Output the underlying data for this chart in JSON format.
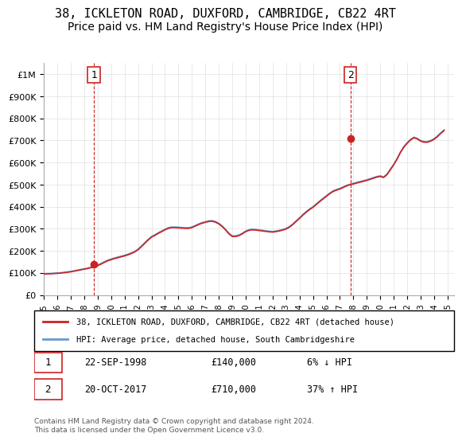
{
  "title": "38, ICKLETON ROAD, DUXFORD, CAMBRIDGE, CB22 4RT",
  "subtitle": "Price paid vs. HM Land Registry's House Price Index (HPI)",
  "title_fontsize": 11,
  "subtitle_fontsize": 10,
  "ylim": [
    0,
    1050000
  ],
  "yticks": [
    0,
    100000,
    200000,
    300000,
    400000,
    500000,
    600000,
    700000,
    800000,
    900000,
    1000000
  ],
  "ytick_labels": [
    "£0",
    "£100K",
    "£200K",
    "£300K",
    "£400K",
    "£500K",
    "£600K",
    "£700K",
    "£800K",
    "£900K",
    "£1M"
  ],
  "sale1_year": 1998.72,
  "sale1_price": 140000,
  "sale1_label": "1",
  "sale1_date": "22-SEP-1998",
  "sale1_amount": "£140,000",
  "sale1_hpi": "6% ↓ HPI",
  "sale2_year": 2017.79,
  "sale2_price": 710000,
  "sale2_label": "2",
  "sale2_date": "20-OCT-2017",
  "sale2_amount": "£710,000",
  "sale2_hpi": "37% ↑ HPI",
  "hpi_color": "#6699cc",
  "price_color": "#cc2222",
  "vline_color": "#cc2222",
  "grid_color": "#e0e0e0",
  "background_color": "#ffffff",
  "legend_label_red": "38, ICKLETON ROAD, DUXFORD, CAMBRIDGE, CB22 4RT (detached house)",
  "legend_label_blue": "HPI: Average price, detached house, South Cambridgeshire",
  "footer": "Contains HM Land Registry data © Crown copyright and database right 2024.\nThis data is licensed under the Open Government Licence v3.0.",
  "hpi_data": {
    "years": [
      1995.0,
      1995.25,
      1995.5,
      1995.75,
      1996.0,
      1996.25,
      1996.5,
      1996.75,
      1997.0,
      1997.25,
      1997.5,
      1997.75,
      1998.0,
      1998.25,
      1998.5,
      1998.75,
      1999.0,
      1999.25,
      1999.5,
      1999.75,
      2000.0,
      2000.25,
      2000.5,
      2000.75,
      2001.0,
      2001.25,
      2001.5,
      2001.75,
      2002.0,
      2002.25,
      2002.5,
      2002.75,
      2003.0,
      2003.25,
      2003.5,
      2003.75,
      2004.0,
      2004.25,
      2004.5,
      2004.75,
      2005.0,
      2005.25,
      2005.5,
      2005.75,
      2006.0,
      2006.25,
      2006.5,
      2006.75,
      2007.0,
      2007.25,
      2007.5,
      2007.75,
      2008.0,
      2008.25,
      2008.5,
      2008.75,
      2009.0,
      2009.25,
      2009.5,
      2009.75,
      2010.0,
      2010.25,
      2010.5,
      2010.75,
      2011.0,
      2011.25,
      2011.5,
      2011.75,
      2012.0,
      2012.25,
      2012.5,
      2012.75,
      2013.0,
      2013.25,
      2013.5,
      2013.75,
      2014.0,
      2014.25,
      2014.5,
      2014.75,
      2015.0,
      2015.25,
      2015.5,
      2015.75,
      2016.0,
      2016.25,
      2016.5,
      2016.75,
      2017.0,
      2017.25,
      2017.5,
      2017.75,
      2018.0,
      2018.25,
      2018.5,
      2018.75,
      2019.0,
      2019.25,
      2019.5,
      2019.75,
      2020.0,
      2020.25,
      2020.5,
      2020.75,
      2021.0,
      2021.25,
      2021.5,
      2021.75,
      2022.0,
      2022.25,
      2022.5,
      2022.75,
      2023.0,
      2023.25,
      2023.5,
      2023.75,
      2024.0,
      2024.25,
      2024.5,
      2024.75
    ],
    "values": [
      97000,
      97500,
      98000,
      99000,
      100000,
      101000,
      103000,
      105000,
      107000,
      110000,
      113000,
      116000,
      119000,
      122000,
      126000,
      130000,
      136000,
      143000,
      151000,
      158000,
      163000,
      168000,
      172000,
      176000,
      180000,
      185000,
      191000,
      198000,
      208000,
      222000,
      237000,
      252000,
      265000,
      273000,
      282000,
      290000,
      298000,
      305000,
      308000,
      308000,
      307000,
      306000,
      305000,
      305000,
      308000,
      315000,
      322000,
      328000,
      332000,
      336000,
      337000,
      333000,
      325000,
      313000,
      298000,
      280000,
      268000,
      268000,
      272000,
      280000,
      290000,
      296000,
      298000,
      297000,
      295000,
      293000,
      291000,
      289000,
      288000,
      290000,
      293000,
      297000,
      302000,
      310000,
      322000,
      336000,
      350000,
      365000,
      378000,
      390000,
      400000,
      413000,
      426000,
      438000,
      450000,
      462000,
      472000,
      478000,
      483000,
      490000,
      497000,
      502000,
      506000,
      510000,
      514000,
      518000,
      522000,
      527000,
      532000,
      537000,
      540000,
      535000,
      548000,
      570000,
      592000,
      618000,
      648000,
      672000,
      690000,
      705000,
      715000,
      710000,
      700000,
      695000,
      695000,
      700000,
      708000,
      720000,
      735000,
      748000
    ]
  },
  "price_data": {
    "years": [
      1995.0,
      1995.25,
      1995.5,
      1995.75,
      1996.0,
      1996.25,
      1996.5,
      1996.75,
      1997.0,
      1997.25,
      1997.5,
      1997.75,
      1998.0,
      1998.25,
      1998.5,
      1998.75,
      1999.0,
      1999.25,
      1999.5,
      1999.75,
      2000.0,
      2000.25,
      2000.5,
      2000.75,
      2001.0,
      2001.25,
      2001.5,
      2001.75,
      2002.0,
      2002.25,
      2002.5,
      2002.75,
      2003.0,
      2003.25,
      2003.5,
      2003.75,
      2004.0,
      2004.25,
      2004.5,
      2004.75,
      2005.0,
      2005.25,
      2005.5,
      2005.75,
      2006.0,
      2006.25,
      2006.5,
      2006.75,
      2007.0,
      2007.25,
      2007.5,
      2007.75,
      2008.0,
      2008.25,
      2008.5,
      2008.75,
      2009.0,
      2009.25,
      2009.5,
      2009.75,
      2010.0,
      2010.25,
      2010.5,
      2010.75,
      2011.0,
      2011.25,
      2011.5,
      2011.75,
      2012.0,
      2012.25,
      2012.5,
      2012.75,
      2013.0,
      2013.25,
      2013.5,
      2013.75,
      2014.0,
      2014.25,
      2014.5,
      2014.75,
      2015.0,
      2015.25,
      2015.5,
      2015.75,
      2016.0,
      2016.25,
      2016.5,
      2016.75,
      2017.0,
      2017.25,
      2017.5,
      2017.75,
      2018.0,
      2018.25,
      2018.5,
      2018.75,
      2019.0,
      2019.25,
      2019.5,
      2019.75,
      2020.0,
      2020.25,
      2020.5,
      2020.75,
      2021.0,
      2021.25,
      2021.5,
      2021.75,
      2022.0,
      2022.25,
      2022.5,
      2022.75,
      2023.0,
      2023.25,
      2023.5,
      2023.75,
      2024.0,
      2024.25,
      2024.5,
      2024.75
    ],
    "values": [
      95000,
      95500,
      96000,
      97000,
      98000,
      99000,
      101000,
      103000,
      105000,
      108000,
      111000,
      114000,
      117000,
      120000,
      124000,
      128000,
      133000,
      140000,
      148000,
      155000,
      160000,
      165000,
      169000,
      173000,
      177000,
      182000,
      188000,
      195000,
      205000,
      219000,
      234000,
      249000,
      262000,
      270000,
      279000,
      287000,
      295000,
      302000,
      305000,
      305000,
      304000,
      303000,
      302000,
      302000,
      305000,
      312000,
      319000,
      325000,
      329000,
      333000,
      334000,
      330000,
      322000,
      310000,
      295000,
      277000,
      265000,
      265000,
      269000,
      277000,
      287000,
      293000,
      295000,
      294000,
      292000,
      290000,
      288000,
      286000,
      285000,
      287000,
      290000,
      294000,
      299000,
      307000,
      319000,
      333000,
      347000,
      362000,
      375000,
      387000,
      397000,
      410000,
      423000,
      435000,
      447000,
      459000,
      469000,
      475000,
      480000,
      487000,
      494000,
      499000,
      503000,
      507000,
      511000,
      515000,
      519000,
      524000,
      529000,
      534000,
      537000,
      532000,
      545000,
      567000,
      589000,
      615000,
      645000,
      669000,
      687000,
      702000,
      712000,
      707000,
      697000,
      692000,
      692000,
      697000,
      705000,
      717000,
      732000,
      745000
    ]
  }
}
